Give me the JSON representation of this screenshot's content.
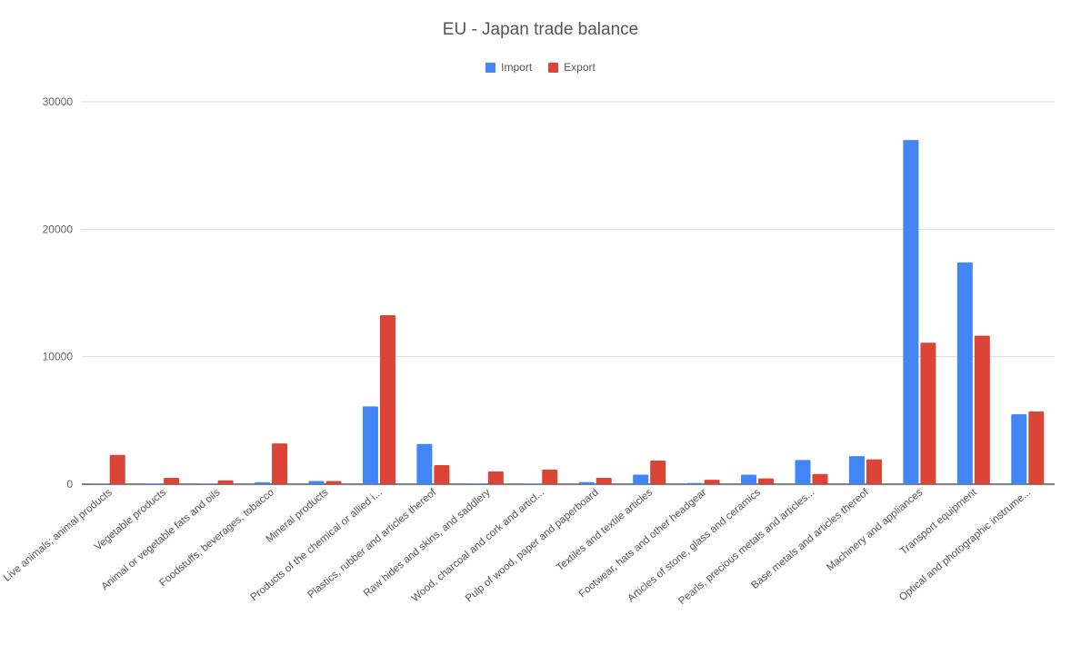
{
  "chart_data": {
    "type": "bar",
    "title": "EU - Japan trade balance",
    "xlabel": "",
    "ylabel": "",
    "ylim": [
      0,
      30000
    ],
    "yticks": [
      0,
      10000,
      20000,
      30000
    ],
    "grid": true,
    "legend_position": "top-center",
    "categories": [
      "Live animals; animal products",
      "Vegetable products",
      "Animal or vegetable fats and oils",
      "Foodstuffs, beverages, tobacco",
      "Mineral products",
      "Products of the chemical or allied i...",
      "Plastics, rubber and articles thereof",
      "Raw hides and skins, and saddlery",
      "Wood, charcoal and cork and articl...",
      "Pulp of wood, paper and paperboard",
      "Textiles and textile articles",
      "Footwear, hats and other headgear",
      "Articles of stone, glass and ceramics",
      "Pearls, precious metals and articles...",
      "Base metals and articles thereof",
      "Machinery and appliances",
      "Transport equipment",
      "Optical and photographic instrume..."
    ],
    "series": [
      {
        "name": "Import",
        "color": "#4285f4",
        "values": [
          30,
          40,
          30,
          150,
          250,
          6100,
          3150,
          60,
          10,
          170,
          750,
          100,
          750,
          1900,
          2200,
          27000,
          17400,
          5500
        ]
      },
      {
        "name": "Export",
        "color": "#db4437",
        "values": [
          2300,
          500,
          300,
          3200,
          250,
          13250,
          1500,
          1000,
          1150,
          500,
          1850,
          350,
          450,
          800,
          1950,
          11100,
          11650,
          5700
        ]
      }
    ]
  }
}
